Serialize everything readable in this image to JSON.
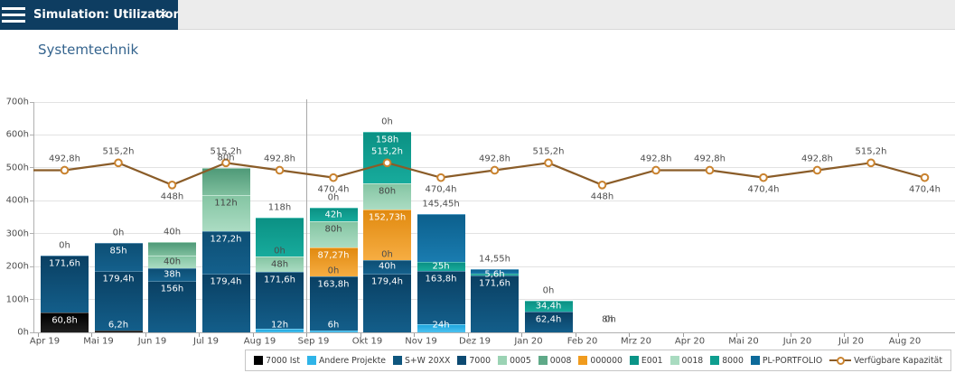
{
  "header": {
    "tab_title": "Simulation: Utilization",
    "close_icon": "✕"
  },
  "page": {
    "title": "Systemtechnik"
  },
  "chart_data": {
    "type": "combo-stacked-bar-line",
    "title": "Systemtechnik",
    "y_axis": {
      "unit": "h",
      "min": 0,
      "max": 700,
      "step": 100,
      "tick_labels": [
        "0h",
        "100h",
        "200h",
        "300h",
        "400h",
        "500h",
        "600h",
        "700h"
      ]
    },
    "x_categories": [
      "Apr 19",
      "Mai 19",
      "Jun 19",
      "Jul 19",
      "Aug 19",
      "Sep 19",
      "Okt 19",
      "Nov 19",
      "Dez 19",
      "Jan 20",
      "Feb 20",
      "Mrz 20",
      "Apr 20",
      "Mai 20",
      "Jun 20",
      "Jul 20",
      "Aug 20"
    ],
    "divider_month": "Sep 19",
    "grid": true,
    "legend_position": "bottom-right",
    "legend": [
      {
        "label": "7000 Ist",
        "swatch": "#000000",
        "color_top": "#000000",
        "color_bottom": "#1f1f1f",
        "label_color": "#ffffff"
      },
      {
        "label": "Andere Projekte",
        "swatch": "#2fb4e8",
        "color_top": "#1ea6dd",
        "color_bottom": "#4cc2f0",
        "label_color": "#ffffff"
      },
      {
        "label": "S+W 20XX",
        "swatch": "#0f567e",
        "color_top": "#0d4f75",
        "color_bottom": "#14608c",
        "label_color": "#ffffff"
      },
      {
        "label": "7000",
        "swatch": "#0d4a72",
        "color_top": "#0a4063",
        "color_bottom": "#135e8a",
        "label_color": "#ffffff"
      },
      {
        "label": "0005",
        "swatch": "#9bd3b4",
        "color_top": "#85c5a3",
        "color_bottom": "#abdcc3",
        "label_color": "#444444"
      },
      {
        "label": "0008",
        "swatch": "#5fa988",
        "color_top": "#4f9a78",
        "color_bottom": "#7fbf9e",
        "label_color": "#ffffff"
      },
      {
        "label": "000000",
        "swatch": "#f09b1e",
        "color_top": "#e18a10",
        "color_bottom": "#f6ad42",
        "label_color": "#ffffff"
      },
      {
        "label": "E001",
        "swatch": "#0a9487",
        "color_top": "#088a7d",
        "color_bottom": "#12a194",
        "label_color": "#ffffff"
      },
      {
        "label": "0018",
        "swatch": "#a9dbc0",
        "color_top": "#98d2b3",
        "color_bottom": "#b8e4cc",
        "label_color": "#444444"
      },
      {
        "label": "8000",
        "swatch": "#0f9e8f",
        "color_top": "#0b9184",
        "color_bottom": "#17ab9c",
        "label_color": "#ffffff"
      },
      {
        "label": "PL-PORTFOLIO",
        "swatch": "#0d6a9a",
        "color_top": "#0c608d",
        "color_bottom": "#1a7cb0",
        "label_color": "#ffffff"
      }
    ],
    "line_series": {
      "label": "Verfügbare Kapazität",
      "color": "#8a5c28",
      "marker_ring": "#c9822e",
      "marker_fill": "#ffffff",
      "points": [
        {
          "month": "Apr 19",
          "value": 492.8,
          "label": "492,8h",
          "label_pos": "above"
        },
        {
          "month": "Mai 19",
          "value": 515.2,
          "label": "515,2h",
          "label_pos": "above"
        },
        {
          "month": "Jun 19",
          "value": 448,
          "label": "448h",
          "label_pos": "below"
        },
        {
          "month": "Jul 19",
          "value": 515.2,
          "label": "515,2h",
          "label_pos": "above"
        },
        {
          "month": "Aug 19",
          "value": 492.8,
          "label": "492,8h",
          "label_pos": "above"
        },
        {
          "month": "Sep 19",
          "value": 470.4,
          "label": "470,4h",
          "label_pos": "below"
        },
        {
          "month": "Okt 19",
          "value": 515.2,
          "label": "515,2h",
          "label_pos": "above_white"
        },
        {
          "month": "Nov 19",
          "value": 470.4,
          "label": "470,4h",
          "label_pos": "below"
        },
        {
          "month": "Dez 19",
          "value": 492.8,
          "label": "492,8h",
          "label_pos": "above"
        },
        {
          "month": "Jan 20",
          "value": 515.2,
          "label": "515,2h",
          "label_pos": "above"
        },
        {
          "month": "Feb 20",
          "value": 448,
          "label": "448h",
          "label_pos": "below"
        },
        {
          "month": "Mrz 20",
          "value": 492.8,
          "label": "492,8h",
          "label_pos": "above"
        },
        {
          "month": "Apr 20",
          "value": 492.8,
          "label": "492,8h",
          "label_pos": "above"
        },
        {
          "month": "Mai 20",
          "value": 470.4,
          "label": "470,4h",
          "label_pos": "below"
        },
        {
          "month": "Jun 20",
          "value": 492.8,
          "label": "492,8h",
          "label_pos": "above"
        },
        {
          "month": "Jul 20",
          "value": 515.2,
          "label": "515,2h",
          "label_pos": "above"
        },
        {
          "month": "Aug 20",
          "value": 470.4,
          "label": "470,4h",
          "label_pos": "below"
        }
      ]
    },
    "bars": [
      {
        "month": "Apr 19",
        "top_label": "0h",
        "segments": [
          {
            "series": "7000 Ist",
            "value": 60.8,
            "label": "60,8h"
          },
          {
            "series": "7000",
            "value": 171.6,
            "label": "171,6h"
          }
        ]
      },
      {
        "month": "Mai 19",
        "top_label": "0h",
        "segments": [
          {
            "series": "7000 Ist",
            "value": 6.2,
            "label": "6,2h"
          },
          {
            "series": "7000",
            "value": 179.4,
            "label": "179,4h"
          },
          {
            "series": "S+W 20XX",
            "value": 85,
            "label": "85h"
          }
        ]
      },
      {
        "month": "Jun 19",
        "top_label": "40h",
        "segments": [
          {
            "series": "7000",
            "value": 156,
            "label": "156h"
          },
          {
            "series": "S+W 20XX",
            "value": 38,
            "label": "38h"
          },
          {
            "series": "0005",
            "value": 40,
            "label": "40h"
          },
          {
            "series": "0008",
            "value": 40,
            "label": ""
          }
        ]
      },
      {
        "month": "Jul 19",
        "top_label": "80h",
        "segments": [
          {
            "series": "7000",
            "value": 179.4,
            "label": "179,4h"
          },
          {
            "series": "S+W 20XX",
            "value": 127.2,
            "label": "127,2h"
          },
          {
            "series": "0005",
            "value": 112,
            "label": "112h"
          },
          {
            "series": "0008",
            "value": 80,
            "label": ""
          }
        ]
      },
      {
        "month": "Aug 19",
        "top_label": "118h",
        "segments": [
          {
            "series": "Andere Projekte",
            "value": 12,
            "label": "12h"
          },
          {
            "series": "7000",
            "value": 171.6,
            "label": "171,6h"
          },
          {
            "series": "0005",
            "value": 48,
            "label": "48h"
          },
          {
            "series": "E001",
            "value": 0,
            "label": "0h"
          },
          {
            "series": "8000",
            "value": 118,
            "label": ""
          }
        ]
      },
      {
        "month": "Sep 19",
        "top_label": "0h",
        "segments": [
          {
            "series": "Andere Projekte",
            "value": 6,
            "label": "6h"
          },
          {
            "series": "7000",
            "value": 163.8,
            "label": "163,8h"
          },
          {
            "series": "E001",
            "value": 0,
            "label": "0h"
          },
          {
            "series": "000000",
            "value": 87.27,
            "label": "87,27h"
          },
          {
            "series": "0005",
            "value": 80,
            "label": "80h"
          },
          {
            "series": "8000",
            "value": 42,
            "label": "42h"
          }
        ]
      },
      {
        "month": "Okt 19",
        "top_label": "0h",
        "segments": [
          {
            "series": "7000",
            "value": 179.4,
            "label": "179,4h"
          },
          {
            "series": "S+W 20XX",
            "value": 40,
            "label": "40h"
          },
          {
            "series": "E001",
            "value": 0,
            "label": "0h"
          },
          {
            "series": "000000",
            "value": 152.73,
            "label": "152,73h"
          },
          {
            "series": "0005",
            "value": 80,
            "label": "80h"
          },
          {
            "series": "8000",
            "value": 158,
            "label": "158h"
          }
        ]
      },
      {
        "month": "Nov 19",
        "top_label": "145,45h",
        "segments": [
          {
            "series": "Andere Projekte",
            "value": 24,
            "label": "24h"
          },
          {
            "series": "7000",
            "value": 163.8,
            "label": "163,8h"
          },
          {
            "series": "8000",
            "value": 25,
            "label": "25h"
          },
          {
            "series": "PL-PORTFOLIO",
            "value": 145.45,
            "label": ""
          }
        ]
      },
      {
        "month": "Dez 19",
        "top_label": "14,55h",
        "segments": [
          {
            "series": "7000",
            "value": 171.6,
            "label": "171,6h"
          },
          {
            "series": "8000",
            "value": 5.6,
            "label": "5,6h"
          },
          {
            "series": "PL-PORTFOLIO",
            "value": 14.55,
            "label": ""
          }
        ]
      },
      {
        "month": "Jan 20",
        "top_label": "0h",
        "segments": [
          {
            "series": "7000",
            "value": 62.4,
            "label": "62,4h"
          },
          {
            "series": "8000",
            "value": 34.4,
            "label": "34,4h"
          }
        ]
      },
      {
        "month": "Feb 20",
        "top_label": "8h",
        "top_label_overlap": "0h",
        "segments": []
      }
    ]
  }
}
